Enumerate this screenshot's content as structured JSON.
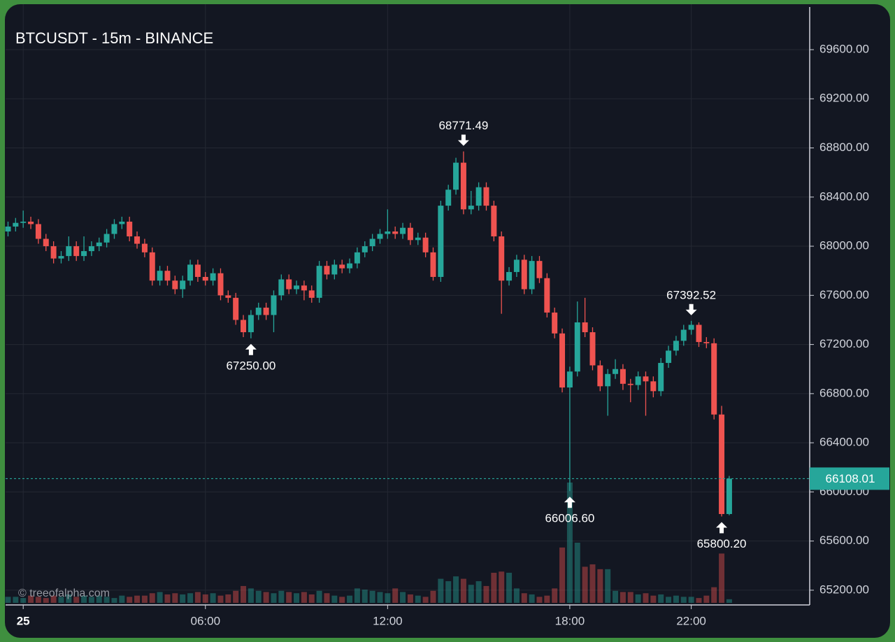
{
  "chart_data": {
    "type": "candlestick",
    "title": "BTCUSDT - 15m - BINANCE",
    "watermark": "© treeofalpha.com",
    "up_color": "#26a69a",
    "down_color": "#ef5350",
    "grid": true,
    "xlim": [
      -0.58,
      25.9
    ],
    "xticks": [
      {
        "value": 0,
        "label": "25"
      },
      {
        "value": 6,
        "label": "06:00"
      },
      {
        "value": 12,
        "label": "12:00"
      },
      {
        "value": 18,
        "label": "18:00"
      },
      {
        "value": 22,
        "label": "22:00"
      }
    ],
    "ylim": [
      65080,
      69970
    ],
    "yticks": [
      {
        "value": 69600,
        "label": "69600.00"
      },
      {
        "value": 69200,
        "label": "69200.00"
      },
      {
        "value": 68800,
        "label": "68800.00"
      },
      {
        "value": 68400,
        "label": "68400.00"
      },
      {
        "value": 68000,
        "label": "68000.00"
      },
      {
        "value": 67600,
        "label": "67600.00"
      },
      {
        "value": 67200,
        "label": "67200.00"
      },
      {
        "value": 66800,
        "label": "66800.00"
      },
      {
        "value": 66400,
        "label": "66400.00"
      },
      {
        "value": 66000,
        "label": "66000.00"
      },
      {
        "value": 65600,
        "label": "65600.00"
      },
      {
        "value": 65200,
        "label": "65200.00"
      }
    ],
    "x": [
      -0.5,
      -0.25,
      0,
      0.25,
      0.5,
      0.75,
      1,
      1.25,
      1.5,
      1.75,
      2,
      2.25,
      2.5,
      2.75,
      3,
      3.25,
      3.5,
      3.75,
      4,
      4.25,
      4.5,
      4.75,
      5,
      5.25,
      5.5,
      5.75,
      6,
      6.25,
      6.5,
      6.75,
      7,
      7.25,
      7.5,
      7.75,
      8,
      8.25,
      8.5,
      8.75,
      9,
      9.25,
      9.5,
      9.75,
      10,
      10.25,
      10.5,
      10.75,
      11,
      11.25,
      11.5,
      11.75,
      12,
      12.25,
      12.5,
      12.75,
      13,
      13.25,
      13.5,
      13.75,
      14,
      14.25,
      14.5,
      14.75,
      15,
      15.25,
      15.5,
      15.75,
      16,
      16.25,
      16.5,
      16.75,
      17,
      17.25,
      17.5,
      17.75,
      18,
      18.25,
      18.5,
      18.75,
      19,
      19.25,
      19.5,
      19.75,
      20,
      20.25,
      20.5,
      20.75,
      21,
      21.25,
      21.5,
      21.75,
      22,
      22.25,
      22.5,
      22.75,
      23,
      23.25
    ],
    "open": [
      68120,
      68160,
      68190,
      68200,
      68180,
      68060,
      68000,
      67900,
      67920,
      68000,
      67920,
      67960,
      68000,
      68030,
      68100,
      68180,
      68200,
      68080,
      68020,
      67950,
      67720,
      67800,
      67720,
      67650,
      67720,
      67850,
      67750,
      67720,
      67780,
      67600,
      67580,
      67400,
      67300,
      67440,
      67500,
      67440,
      67600,
      67730,
      67650,
      67680,
      67640,
      67580,
      67840,
      67770,
      67850,
      67820,
      67860,
      67950,
      68000,
      68060,
      68100,
      68120,
      68100,
      68150,
      68050,
      68070,
      67950,
      67750,
      68330,
      68460,
      68680,
      68300,
      68330,
      68480,
      68330,
      68080,
      67720,
      67790,
      67890,
      67650,
      67880,
      67740,
      67460,
      67290,
      66850,
      66980,
      67380,
      67300,
      67030,
      66860,
      66960,
      67000,
      66880,
      66870,
      66940,
      66900,
      66820,
      67050,
      67150,
      67230,
      67320,
      67360,
      67220,
      67210,
      66630,
      65820
    ],
    "high": [
      68200,
      68230,
      68290,
      68240,
      68220,
      68100,
      68040,
      67960,
      68080,
      68040,
      68080,
      68040,
      68070,
      68140,
      68220,
      68240,
      68240,
      68120,
      68060,
      67990,
      67840,
      67840,
      67760,
      67760,
      67890,
      67890,
      67790,
      67820,
      67820,
      67640,
      67620,
      67440,
      67480,
      67540,
      67540,
      67640,
      67770,
      67770,
      67720,
      67720,
      67680,
      67880,
      67880,
      67890,
      67890,
      67900,
      67990,
      68040,
      68100,
      68140,
      68300,
      68160,
      68190,
      68190,
      68110,
      68110,
      67990,
      68370,
      68500,
      68720,
      68771.49,
      68450,
      68520,
      68520,
      68370,
      68120,
      67830,
      67930,
      67930,
      67920,
      67920,
      67780,
      67500,
      67330,
      67020,
      67550,
      67580,
      67340,
      67070,
      67000,
      67080,
      67040,
      66920,
      66980,
      66980,
      66940,
      67090,
      67190,
      67270,
      67360,
      67392.52,
      67380,
      67260,
      67250,
      66700,
      66130
    ],
    "low": [
      68080,
      68120,
      68150,
      68140,
      68020,
      67960,
      67860,
      67860,
      67880,
      67880,
      67880,
      67920,
      67960,
      67990,
      68060,
      68140,
      68040,
      67980,
      67910,
      67680,
      67680,
      67680,
      67610,
      67580,
      67680,
      67710,
      67680,
      67680,
      67560,
      67540,
      67360,
      67260,
      67250,
      67400,
      67400,
      67300,
      67560,
      67610,
      67610,
      67560,
      67540,
      67540,
      67730,
      67730,
      67780,
      67780,
      67820,
      67910,
      67960,
      68020,
      68060,
      68060,
      68060,
      68010,
      68010,
      67910,
      67720,
      67710,
      68290,
      68420,
      68260,
      68260,
      68290,
      68290,
      68040,
      67450,
      67680,
      67750,
      67610,
      67610,
      67700,
      67420,
      67250,
      66810,
      66006.6,
      66940,
      67260,
      66990,
      66820,
      66620,
      66920,
      66830,
      66730,
      66830,
      66620,
      66770,
      66780,
      67010,
      67110,
      67190,
      67280,
      67180,
      67170,
      66590,
      65800.2,
      65810
    ],
    "close": [
      68160,
      68190,
      68200,
      68180,
      68060,
      68000,
      67900,
      67920,
      68000,
      67920,
      67960,
      68000,
      68030,
      68100,
      68180,
      68200,
      68080,
      68020,
      67950,
      67720,
      67800,
      67720,
      67650,
      67720,
      67850,
      67750,
      67720,
      67780,
      67600,
      67580,
      67400,
      67300,
      67440,
      67500,
      67440,
      67600,
      67730,
      67650,
      67680,
      67640,
      67580,
      67840,
      67770,
      67850,
      67820,
      67860,
      67950,
      68000,
      68060,
      68100,
      68120,
      68100,
      68150,
      68050,
      68070,
      67950,
      67750,
      68330,
      68460,
      68680,
      68300,
      68330,
      68480,
      68330,
      68080,
      67720,
      67790,
      67890,
      67650,
      67880,
      67740,
      67460,
      67290,
      66850,
      66980,
      67380,
      67300,
      67030,
      66860,
      66960,
      67000,
      66880,
      66870,
      66940,
      66900,
      66820,
      67050,
      67150,
      67230,
      67320,
      67360,
      67220,
      67210,
      66630,
      65820,
      66108.01
    ],
    "volume": [
      5,
      5,
      4,
      6,
      5,
      4,
      6,
      5,
      7,
      5,
      6,
      5,
      6,
      5,
      4,
      6,
      5,
      6,
      6,
      8,
      9,
      7,
      8,
      7,
      8,
      9,
      7,
      8,
      6,
      7,
      10,
      14,
      12,
      10,
      9,
      8,
      10,
      9,
      8,
      9,
      7,
      10,
      8,
      6,
      5,
      6,
      12,
      11,
      10,
      9,
      8,
      12,
      9,
      7,
      6,
      5,
      10,
      20,
      18,
      22,
      20,
      15,
      18,
      14,
      25,
      26,
      25,
      12,
      8,
      7,
      5,
      6,
      12,
      46,
      100,
      50,
      30,
      32,
      28,
      28,
      10,
      9,
      9,
      7,
      8,
      6,
      7,
      5,
      6,
      5,
      5,
      4,
      6,
      13,
      41,
      3
    ],
    "annotations": [
      {
        "value": 68771.49,
        "label": "68771.49",
        "x": 14.5,
        "position": "above"
      },
      {
        "value": 67250,
        "label": "67250.00",
        "x": 7.5,
        "position": "below"
      },
      {
        "value": 67392.52,
        "label": "67392.52",
        "x": 22,
        "position": "above"
      },
      {
        "value": 66006.6,
        "label": "66006.60",
        "x": 18,
        "position": "below"
      },
      {
        "value": 65800.2,
        "label": "65800.20",
        "x": 23,
        "position": "below"
      }
    ]
  }
}
